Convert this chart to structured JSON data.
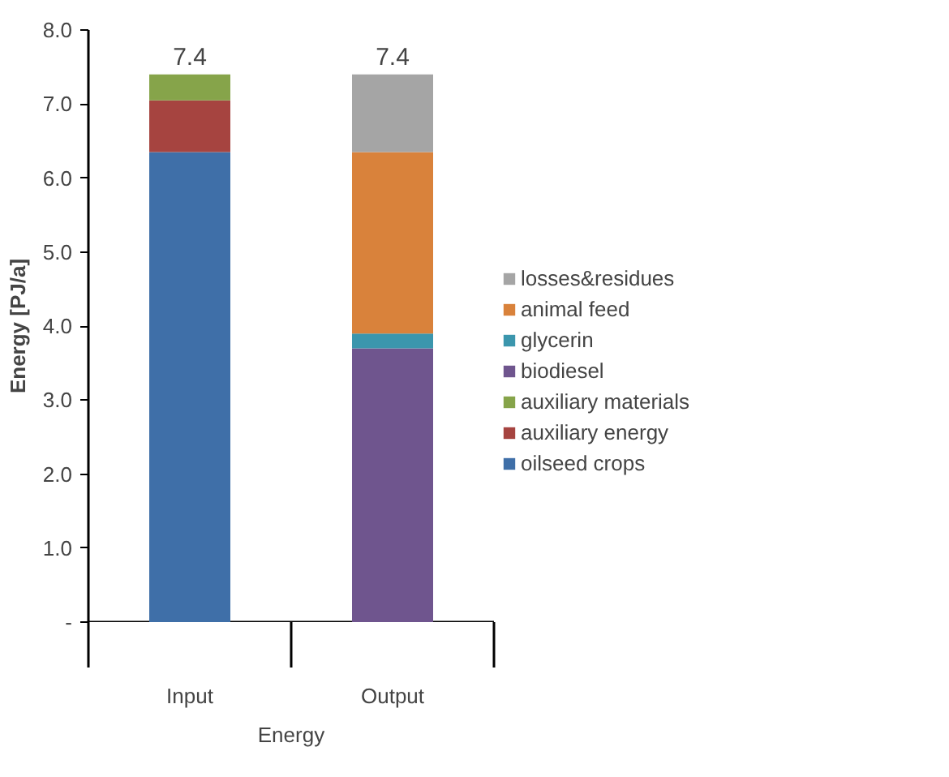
{
  "chart_data": {
    "type": "bar",
    "stacked": true,
    "ylabel": "Energy [PJ/a]",
    "xlabel": "Energy",
    "categories": [
      "Input",
      "Output"
    ],
    "series": [
      {
        "name": "oilseed crops",
        "color": "#3f6fa8",
        "values": [
          6.35,
          null
        ]
      },
      {
        "name": "auxiliary energy",
        "color": "#a64440",
        "values": [
          0.7,
          null
        ]
      },
      {
        "name": "auxiliary materials",
        "color": "#86a44a",
        "values": [
          0.35,
          null
        ]
      },
      {
        "name": "biodiesel",
        "color": "#6f558e",
        "values": [
          null,
          3.7
        ]
      },
      {
        "name": "glycerin",
        "color": "#3b96ad",
        "values": [
          null,
          0.2
        ]
      },
      {
        "name": "animal feed",
        "color": "#d9823b",
        "values": [
          null,
          2.45
        ]
      },
      {
        "name": "losses&residues",
        "color": "#a5a5a5",
        "values": [
          null,
          1.05
        ]
      }
    ],
    "totals": [
      "7.4",
      "7.4"
    ],
    "ylim": [
      0,
      8
    ],
    "yticks": [
      {
        "value": 0,
        "label": "-"
      },
      {
        "value": 1,
        "label": "1.0"
      },
      {
        "value": 2,
        "label": "2.0"
      },
      {
        "value": 3,
        "label": "3.0"
      },
      {
        "value": 4,
        "label": "4.0"
      },
      {
        "value": 5,
        "label": "5.0"
      },
      {
        "value": 6,
        "label": "6.0"
      },
      {
        "value": 7,
        "label": "7.0"
      },
      {
        "value": 8,
        "label": "8.0"
      }
    ],
    "grid": false,
    "legend": "right"
  }
}
